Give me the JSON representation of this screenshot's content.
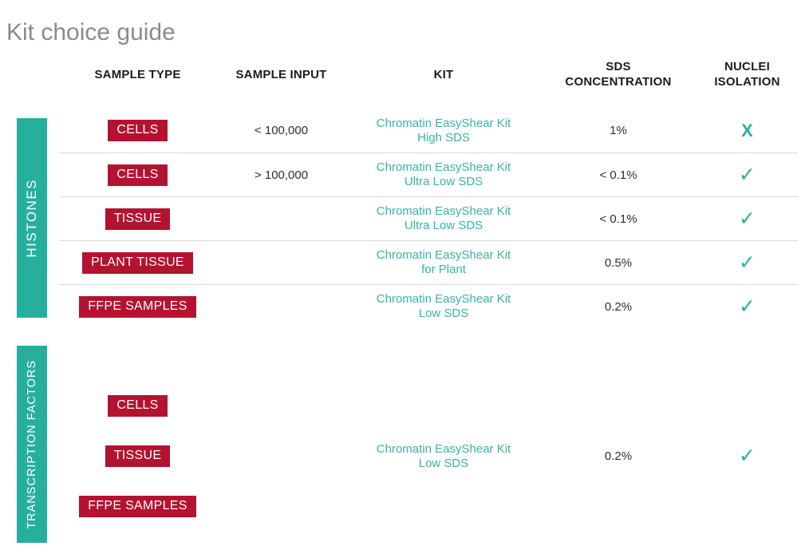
{
  "page": {
    "title": "Kit choice guide"
  },
  "colors": {
    "accent_teal": "#27AF9E",
    "badge_red": "#B41231",
    "kit_link_teal": "#3AB4A4",
    "title_gray": "#8B8B8E",
    "divider_gray": "#D8D8D8"
  },
  "table": {
    "headers": [
      {
        "line1": "SAMPLE TYPE",
        "line2": ""
      },
      {
        "line1": "SAMPLE INPUT",
        "line2": ""
      },
      {
        "line1": "KIT",
        "line2": ""
      },
      {
        "line1": "SDS",
        "line2": "CONCENTRATION"
      },
      {
        "line1": "NUCLEI",
        "line2": "ISOLATION"
      }
    ],
    "groups": [
      {
        "label": "HISTONES",
        "rows": [
          {
            "sample_type": "CELLS",
            "sample_input": "< 100,000",
            "kit": {
              "line1": "Chromatin EasyShear Kit",
              "line2": "High SDS"
            },
            "sds": "1%",
            "nuclei_mark": "X"
          },
          {
            "sample_type": "CELLS",
            "sample_input": "> 100,000",
            "kit": {
              "line1": "Chromatin EasyShear Kit",
              "line2": "Ultra Low SDS"
            },
            "sds": "< 0.1%",
            "nuclei_mark": "✓"
          },
          {
            "sample_type": "TISSUE",
            "sample_input": "",
            "kit": {
              "line1": "Chromatin EasyShear Kit",
              "line2": "Ultra Low SDS"
            },
            "sds": "< 0.1%",
            "nuclei_mark": "✓"
          },
          {
            "sample_type": "PLANT TISSUE",
            "sample_input": "",
            "kit": {
              "line1": "Chromatin EasyShear Kit",
              "line2": "for Plant"
            },
            "sds": "0.5%",
            "nuclei_mark": "✓"
          },
          {
            "sample_type": "FFPE SAMPLES",
            "sample_input": "",
            "kit": {
              "line1": "Chromatin EasyShear Kit",
              "line2": "Low SDS"
            },
            "sds": "0.2%",
            "nuclei_mark": "✓"
          }
        ]
      },
      {
        "label": "TRANSCRIPTION FACTORS",
        "sample_types": [
          "CELLS",
          "TISSUE",
          "FFPE SAMPLES"
        ],
        "kit": {
          "line1": "Chromatin EasyShear Kit",
          "line2": "Low SDS"
        },
        "sds": "0.2%",
        "nuclei_mark": "✓"
      }
    ]
  }
}
